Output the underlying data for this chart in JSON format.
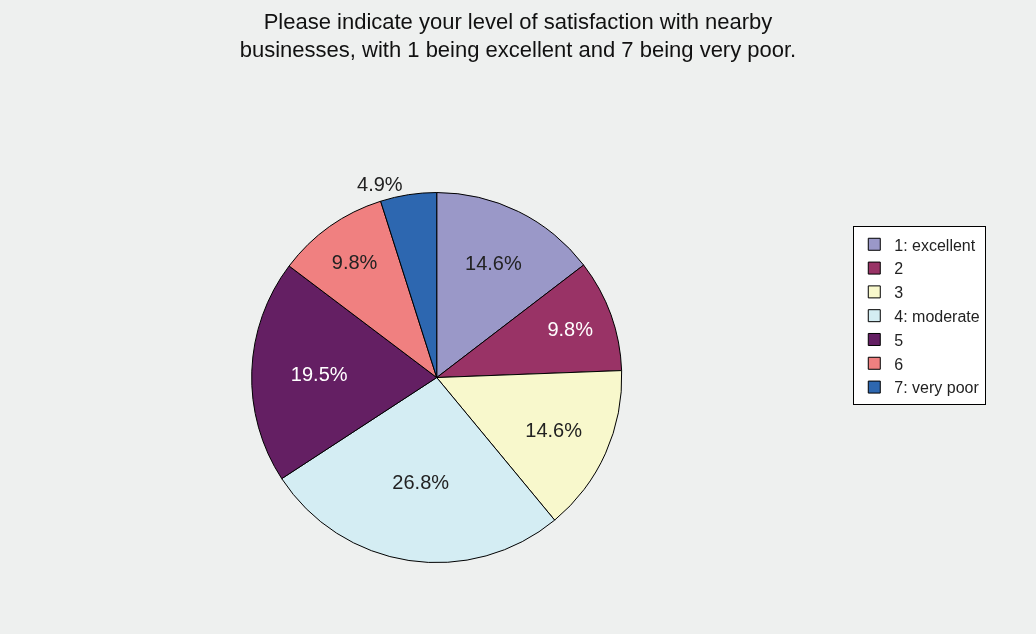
{
  "chart_data": {
    "type": "pie",
    "title": "Please indicate your level of satisfaction with nearby\nbusinesses, with 1 being excellent and 7 being very poor.",
    "categories": [
      "1: excellent",
      "2",
      "3",
      "4: moderate",
      "5",
      "6",
      "7: very poor"
    ],
    "values": [
      14.6,
      9.8,
      14.6,
      26.8,
      19.5,
      9.8,
      4.9
    ],
    "colors": [
      "#9a98c8",
      "#993366",
      "#f8f8cc",
      "#d4edf3",
      "#641f63",
      "#f08080",
      "#2d67b0"
    ],
    "value_labels": [
      "14.6%",
      "9.8%",
      "14.6%",
      "26.8%",
      "19.5%",
      "9.8%",
      "4.9%"
    ],
    "legend": "right"
  }
}
